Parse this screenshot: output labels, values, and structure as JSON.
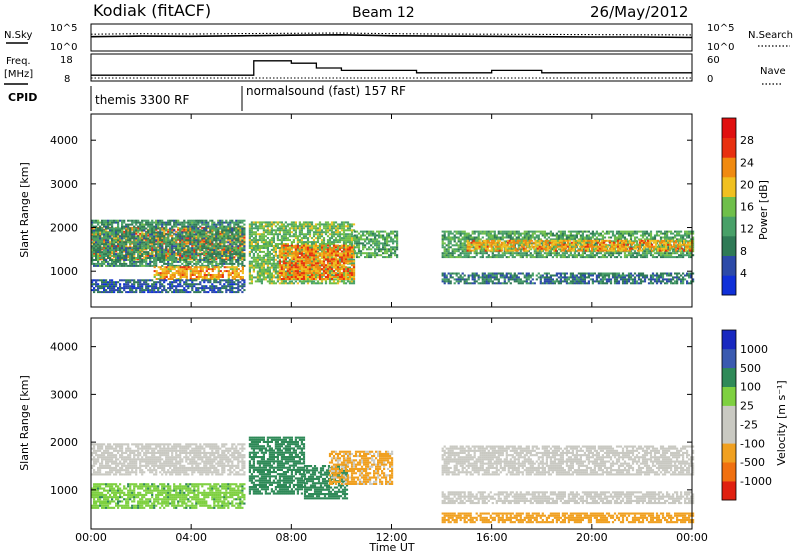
{
  "header": {
    "station": "Kodiak (fitACF)",
    "beam": "Beam 12",
    "date": "26/May/2012"
  },
  "noise_panel": {
    "left_label": "N.Sky",
    "right_label": "N.Search",
    "left_ticks": [
      "10^5",
      "10^0"
    ],
    "right_ticks": [
      "10^5",
      "10^0"
    ]
  },
  "freq_panel": {
    "left_label_1": "Freq.",
    "left_label_2": "[MHz]",
    "right_label": "Nave",
    "left_ticks": [
      "18",
      "8"
    ],
    "right_ticks": [
      "60",
      "0"
    ]
  },
  "cpid_panel": {
    "label": "CPID",
    "programs": [
      {
        "name": "themis 3300 RF",
        "start_hour": 0
      },
      {
        "name": "normalsound (fast) 157 RF",
        "start_hour": 6
      }
    ]
  },
  "x_axis": {
    "label": "Time UT",
    "ticks": [
      "00:00",
      "04:00",
      "08:00",
      "12:00",
      "16:00",
      "20:00",
      "00:00"
    ]
  },
  "power_panel": {
    "ylabel": "Slant Range [km]",
    "yticks": [
      "1000",
      "2000",
      "3000",
      "4000"
    ],
    "colorbar_label": "Power [dB]",
    "colorbar_ticks": [
      "4",
      "8",
      "12",
      "16",
      "20",
      "24",
      "28"
    ]
  },
  "velocity_panel": {
    "ylabel": "Slant Range [km]",
    "yticks": [
      "1000",
      "2000",
      "3000",
      "4000"
    ],
    "colorbar_label": "Velocity [m s⁻¹]",
    "colorbar_ticks": [
      "1000",
      "500",
      "100",
      "25",
      "-25",
      "-100",
      "-500",
      "-1000"
    ]
  },
  "colors": {
    "power_scale": [
      "#1030d8",
      "#2c4aa8",
      "#2f7a56",
      "#48a068",
      "#6fbf4a",
      "#f0c020",
      "#f08a10",
      "#e83010",
      "#e01010"
    ],
    "velocity_scale": [
      "#1828c0",
      "#3a5ab0",
      "#2f8a58",
      "#7ed040",
      "#c9c9c2",
      "#c9c9c2",
      "#f0a020",
      "#f07010",
      "#e02010"
    ],
    "ground_scatter": "#c9c9c2"
  },
  "chart_data": [
    {
      "type": "line",
      "title": "N.Sky / N.Search",
      "x_unit": "hours UT",
      "x": [
        0,
        2,
        4,
        6,
        8,
        10,
        12,
        14,
        16,
        18,
        20,
        22,
        24
      ],
      "series": [
        {
          "name": "N.Sky",
          "values": [
            600,
            800,
            700,
            900,
            1200,
            1500,
            900,
            800,
            700,
            600,
            500,
            500,
            400
          ]
        },
        {
          "name": "N.Search",
          "values": [
            2000,
            2500,
            2200,
            2600,
            3000,
            3400,
            2500,
            2200,
            2000,
            1800,
            1600,
            1500,
            1400
          ]
        }
      ],
      "ylim": [
        1,
        100000
      ],
      "yscale": "log"
    },
    {
      "type": "line",
      "title": "Freq. / Nave",
      "x_unit": "hours UT",
      "x": [
        0,
        6,
        6.5,
        8,
        9,
        10,
        11,
        12,
        13,
        14,
        16,
        18,
        20,
        22,
        24
      ],
      "series": [
        {
          "name": "Freq.",
          "values": [
            10,
            10,
            16,
            15,
            13,
            12,
            12,
            12,
            11,
            11,
            12,
            11,
            11,
            11,
            11
          ]
        },
        {
          "name": "Nave",
          "values": [
            5,
            5,
            5,
            5,
            5,
            5,
            5,
            5,
            5,
            5,
            5,
            5,
            5,
            5,
            5
          ]
        }
      ],
      "ylim_left": [
        8,
        18
      ],
      "ylim_right": [
        0,
        60
      ]
    },
    {
      "type": "heatmap",
      "title": "Power",
      "x_unit": "hours UT",
      "y_unit": "km",
      "xlim": [
        0,
        24
      ],
      "ylim": [
        180,
        4600
      ],
      "zlim": [
        0,
        30
      ],
      "bands": [
        {
          "t_start": 0,
          "t_end": 6.1,
          "r_min": 1250,
          "r_max": 2000,
          "power": 22
        },
        {
          "t_start": 0,
          "t_end": 6.1,
          "r_min": 1100,
          "r_max": 2150,
          "power": 10
        },
        {
          "t_start": 2.5,
          "t_end": 6.1,
          "r_min": 800,
          "r_max": 1100,
          "power": 20
        },
        {
          "t_start": 0,
          "t_end": 6.1,
          "r_min": 500,
          "r_max": 800,
          "power": 6
        },
        {
          "t_start": 6.3,
          "t_end": 10.5,
          "r_min": 700,
          "r_max": 2100,
          "power": 14
        },
        {
          "t_start": 7.5,
          "t_end": 10.5,
          "r_min": 800,
          "r_max": 1600,
          "power": 22
        },
        {
          "t_start": 10.5,
          "t_end": 12.2,
          "r_min": 1300,
          "r_max": 1900,
          "power": 12
        },
        {
          "t_start": 14,
          "t_end": 24,
          "r_min": 1300,
          "r_max": 1900,
          "power": 12
        },
        {
          "t_start": 15,
          "t_end": 24,
          "r_min": 1450,
          "r_max": 1700,
          "power": 20
        },
        {
          "t_start": 14,
          "t_end": 24,
          "r_min": 700,
          "r_max": 950,
          "power": 8
        }
      ]
    },
    {
      "type": "heatmap",
      "title": "Velocity",
      "x_unit": "hours UT",
      "y_unit": "km",
      "xlim": [
        0,
        24
      ],
      "ylim": [
        180,
        4600
      ],
      "zlim": [
        -1000,
        1000
      ],
      "bands": [
        {
          "t_start": 0,
          "t_end": 6.1,
          "r_min": 1300,
          "r_max": 1950,
          "velocity": 0,
          "ground_scatter": true
        },
        {
          "t_start": 0,
          "t_end": 6.1,
          "r_min": 600,
          "r_max": 1100,
          "velocity": 80
        },
        {
          "t_start": 6.3,
          "t_end": 8.5,
          "r_min": 900,
          "r_max": 2100,
          "velocity": 300
        },
        {
          "t_start": 8.5,
          "t_end": 10.2,
          "r_min": 800,
          "r_max": 1500,
          "velocity": 150
        },
        {
          "t_start": 9.5,
          "t_end": 12,
          "r_min": 1100,
          "r_max": 1800,
          "velocity": -120
        },
        {
          "t_start": 14,
          "t_end": 24,
          "r_min": 1300,
          "r_max": 1900,
          "velocity": 0,
          "ground_scatter": true
        },
        {
          "t_start": 14,
          "t_end": 24,
          "r_min": 700,
          "r_max": 950,
          "velocity": 0,
          "ground_scatter": true
        },
        {
          "t_start": 14,
          "t_end": 24,
          "r_min": 300,
          "r_max": 500,
          "velocity": -200
        }
      ]
    }
  ]
}
